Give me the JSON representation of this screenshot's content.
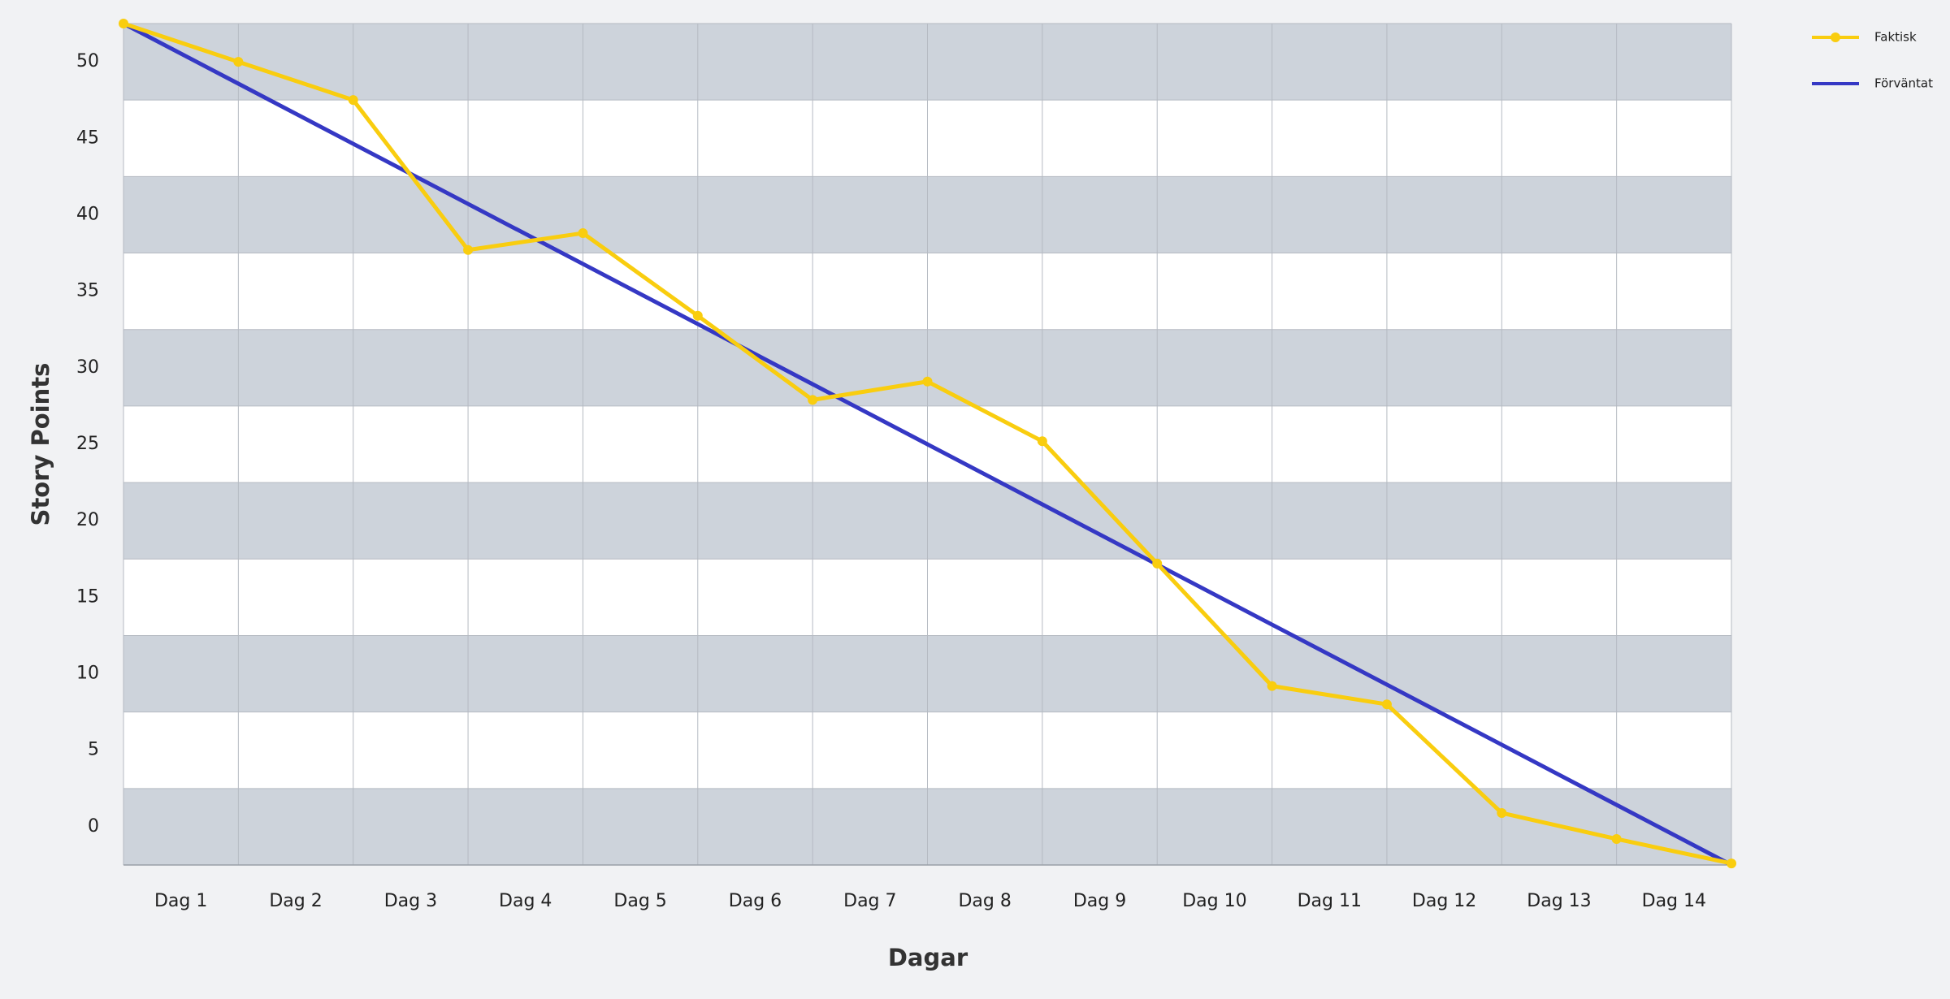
{
  "chart_data": {
    "type": "line",
    "x": [
      0,
      1,
      2,
      3,
      4,
      5,
      6,
      7,
      8,
      9,
      10,
      11,
      12,
      13,
      14
    ],
    "xlim": [
      0,
      14
    ],
    "xticks": [
      {
        "value": 0.5,
        "label": "Dag 1"
      },
      {
        "value": 1.5,
        "label": "Dag 2"
      },
      {
        "value": 2.5,
        "label": "Dag 3"
      },
      {
        "value": 3.5,
        "label": "Dag 4"
      },
      {
        "value": 4.5,
        "label": "Dag 5"
      },
      {
        "value": 5.5,
        "label": "Dag 6"
      },
      {
        "value": 6.5,
        "label": "Dag 7"
      },
      {
        "value": 7.5,
        "label": "Dag 8"
      },
      {
        "value": 8.5,
        "label": "Dag 9"
      },
      {
        "value": 9.5,
        "label": "Dag 10"
      },
      {
        "value": 10.5,
        "label": "Dag 11"
      },
      {
        "value": 11.5,
        "label": "Dag 12"
      },
      {
        "value": 12.5,
        "label": "Dag 13"
      },
      {
        "value": 13.5,
        "label": "Dag 14"
      }
    ],
    "ylim": [
      -2.5,
      52.5
    ],
    "yticks": [
      0,
      5,
      10,
      15,
      20,
      25,
      30,
      35,
      40,
      45,
      50
    ],
    "x_label": "Dagar",
    "y_label": "Story Points",
    "grid": true,
    "legend": "top-right",
    "series": [
      {
        "name": "Faktisk",
        "color": "#f9cd0f",
        "markers": true,
        "values": [
          52.5,
          50,
          47.5,
          37.7,
          38.8,
          33.4,
          27.9,
          29.1,
          25.2,
          17.2,
          9.2,
          8.0,
          0.9,
          -0.8,
          -2.4
        ]
      },
      {
        "name": "Förväntat",
        "color": "#3538c4",
        "markers": false,
        "values": [
          52.5,
          48.57,
          44.64,
          40.71,
          36.79,
          32.86,
          28.93,
          25,
          21.07,
          17.14,
          13.21,
          9.29,
          5.36,
          1.43,
          -2.5
        ]
      }
    ]
  }
}
